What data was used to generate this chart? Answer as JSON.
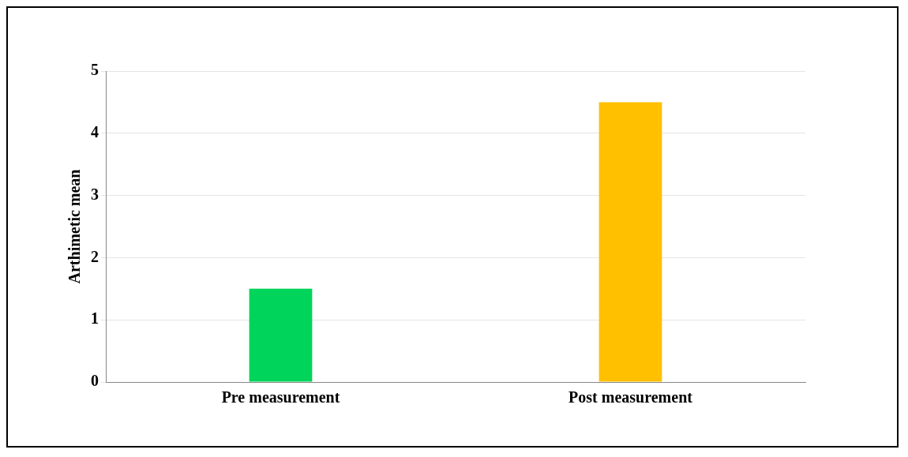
{
  "chart_data": {
    "type": "bar",
    "ylabel": "Arthimetic mean",
    "categories": [
      "Pre measurement",
      "Post measurement"
    ],
    "values": [
      1.5,
      4.5
    ],
    "colors": [
      "#00d45a",
      "#ffc000"
    ],
    "ylim": [
      0,
      5
    ],
    "yticks": [
      0,
      1,
      2,
      3,
      4,
      5
    ],
    "grid": "y"
  }
}
